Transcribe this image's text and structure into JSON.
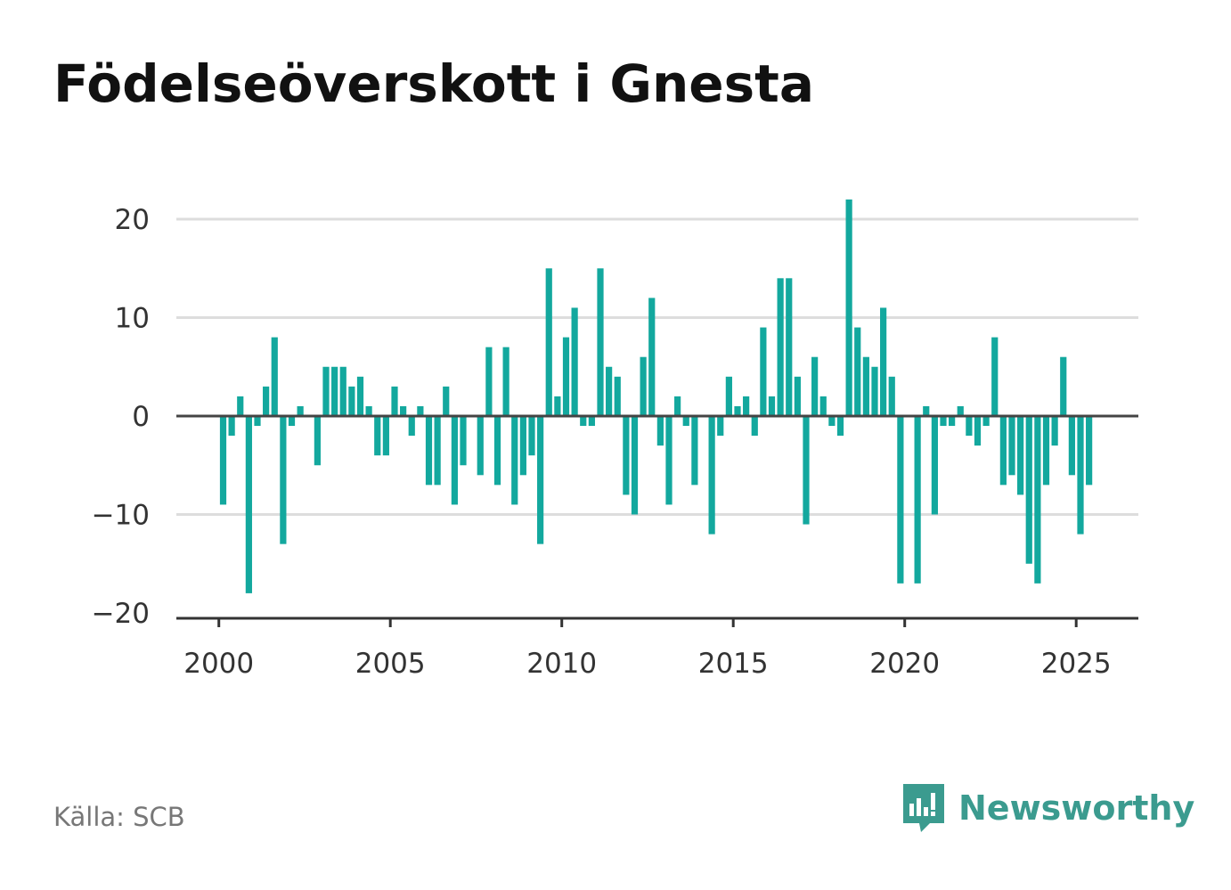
{
  "title": "Födelseöverskott i Gnesta",
  "source": "Källa: SCB",
  "brand": {
    "name": "Newsworthy",
    "icon": "newsworthy-logo-icon",
    "color": "#3b9b8f"
  },
  "colors": {
    "bar": "#13a89e",
    "grid": "#dddddd",
    "zero_line": "#444444",
    "axis": "#333333"
  },
  "chart_data": {
    "type": "bar",
    "x_unit": "quarter",
    "grid": true,
    "ylim": [
      -20,
      22
    ],
    "yticks": [
      20,
      10,
      0,
      -10,
      -20
    ],
    "ytick_labels": [
      "20",
      "10",
      "0",
      "−10",
      "−20"
    ],
    "xticks": [
      2000,
      2005,
      2010,
      2015,
      2020,
      2025
    ],
    "xtick_labels": [
      "2000",
      "2005",
      "2010",
      "2015",
      "2020",
      "2025"
    ],
    "start": "2000-Q1",
    "values": [
      -9,
      -2,
      2,
      -18,
      -1,
      3,
      8,
      -13,
      -1,
      1,
      0,
      -5,
      5,
      5,
      5,
      3,
      4,
      1,
      -4,
      -4,
      3,
      1,
      -2,
      1,
      -7,
      -7,
      3,
      -9,
      -5,
      0,
      -6,
      7,
      -7,
      7,
      -9,
      -6,
      -4,
      -13,
      15,
      2,
      8,
      11,
      -1,
      -1,
      15,
      5,
      4,
      -8,
      -10,
      6,
      12,
      -3,
      -9,
      2,
      -1,
      -7,
      0,
      -12,
      -2,
      4,
      1,
      2,
      -2,
      9,
      2,
      14,
      14,
      4,
      -11,
      6,
      2,
      -1,
      -2,
      22,
      9,
      6,
      5,
      11,
      4,
      -17,
      0,
      -17,
      1,
      -10,
      -1,
      -1,
      1,
      -2,
      -3,
      -1,
      8,
      -7,
      -6,
      -8,
      -15,
      -17,
      -7,
      -3,
      6,
      -6,
      -12,
      -7
    ]
  }
}
